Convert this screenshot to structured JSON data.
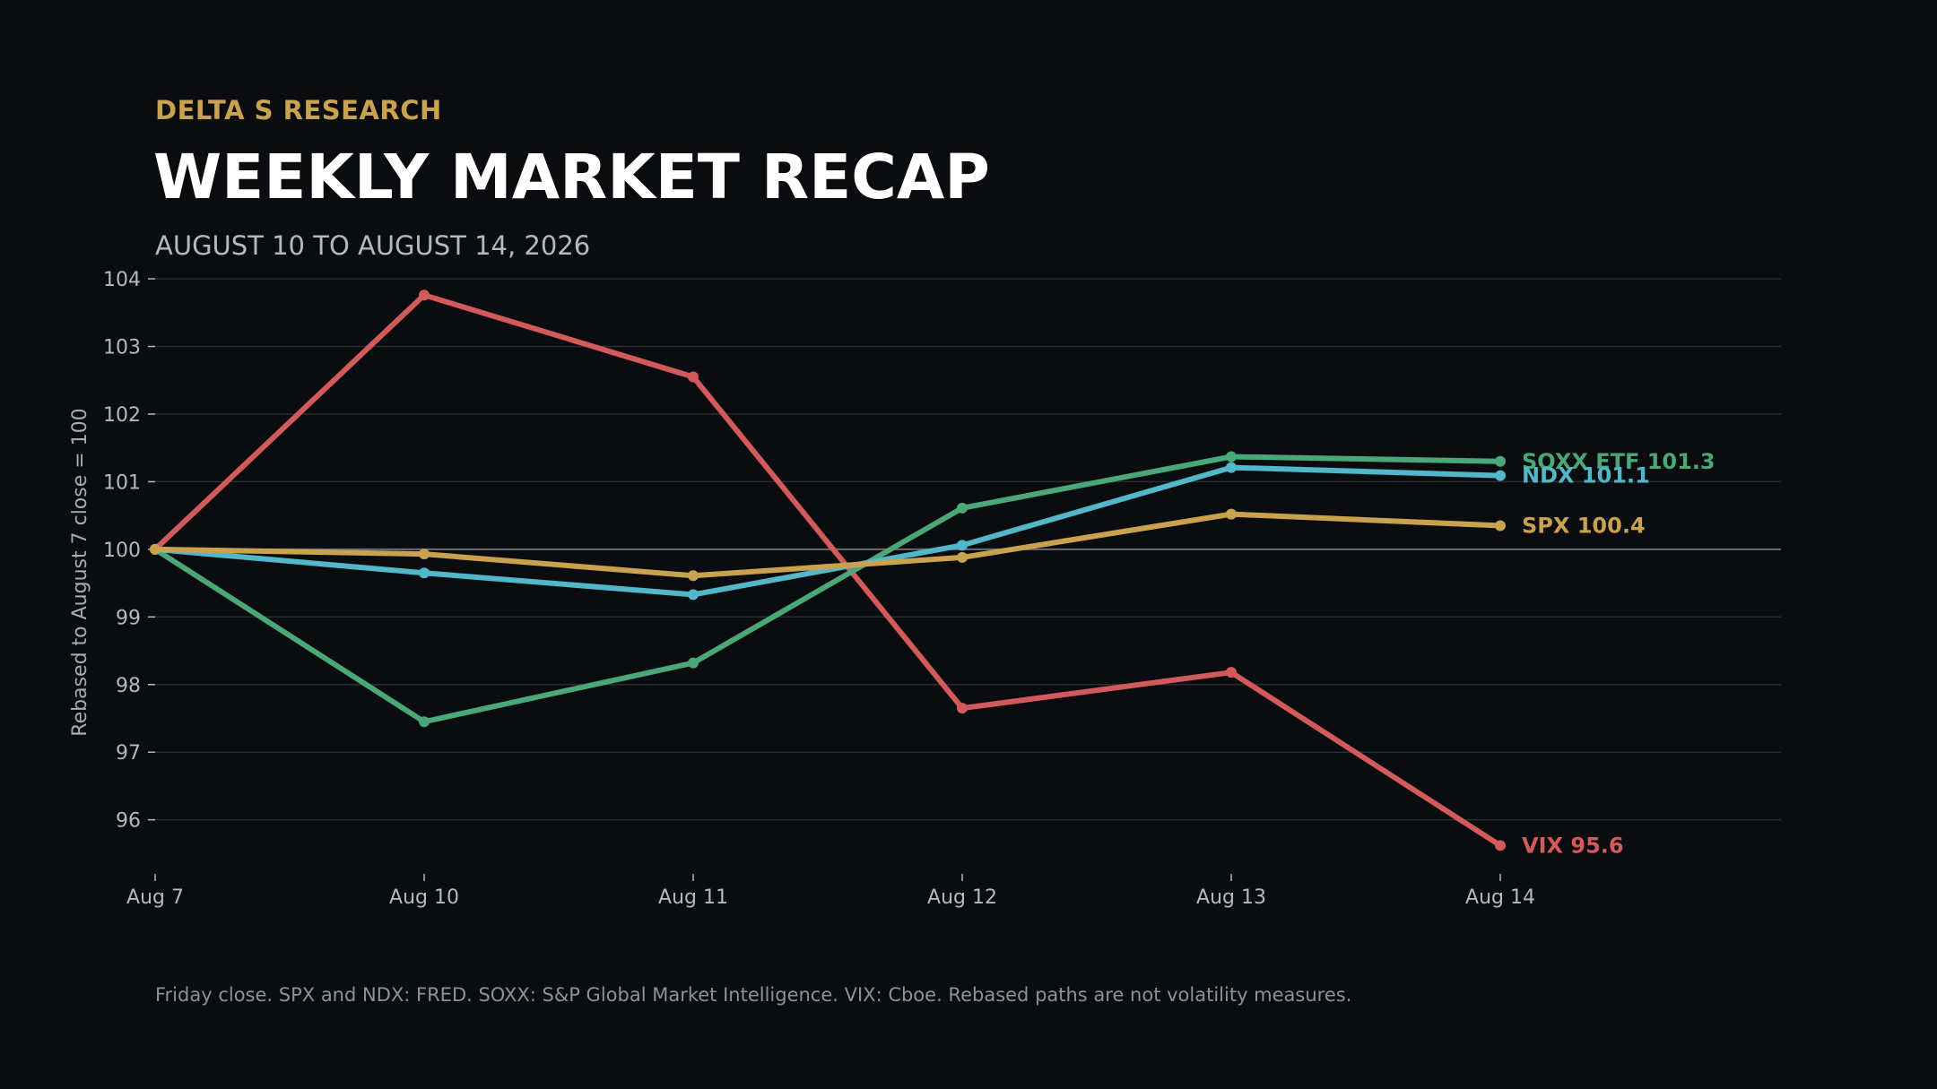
{
  "header": {
    "brand": "DELTA S RESEARCH",
    "title": "WEEKLY MARKET RECAP",
    "subtitle": "AUGUST 10 TO AUGUST 14, 2026"
  },
  "footnote": "Friday close. SPX and NDX: FRED. SOXX: S&P Global Market Intelligence. VIX: Cboe. Rebased paths are not volatility measures.",
  "colors": {
    "background": "#0b0c0f",
    "brand": "#c9a24e",
    "grid": "#2a2c31",
    "baseline": "#6a6d73"
  },
  "chart_data": {
    "type": "line",
    "x": [
      "Aug 7",
      "Aug 10",
      "Aug 11",
      "Aug 12",
      "Aug 13",
      "Aug 14"
    ],
    "ylabel": "Rebased to August 7 close = 100",
    "ylim": [
      95.2,
      104.2
    ],
    "yticks": [
      96,
      97,
      98,
      99,
      100,
      101,
      102,
      103,
      104
    ],
    "baseline": 100,
    "grid": true,
    "legend": "end-of-line labels",
    "series": [
      {
        "name": "VIX",
        "end_label": "VIX  95.6",
        "color": "#d35a5a",
        "values": [
          100,
          103.76,
          102.55,
          97.65,
          98.18,
          95.62
        ]
      },
      {
        "name": "SOXX ETF",
        "end_label": "SOXX ETF  101.3",
        "color": "#4aa777",
        "values": [
          100,
          97.45,
          98.32,
          100.61,
          101.37,
          101.3
        ]
      },
      {
        "name": "NDX",
        "end_label": "NDX  101.1",
        "color": "#52b7c9",
        "values": [
          100,
          99.65,
          99.33,
          100.06,
          101.21,
          101.09
        ]
      },
      {
        "name": "SPX",
        "end_label": "SPX  100.4",
        "color": "#c9a24e",
        "values": [
          100,
          99.93,
          99.61,
          99.88,
          100.52,
          100.35
        ]
      }
    ]
  }
}
